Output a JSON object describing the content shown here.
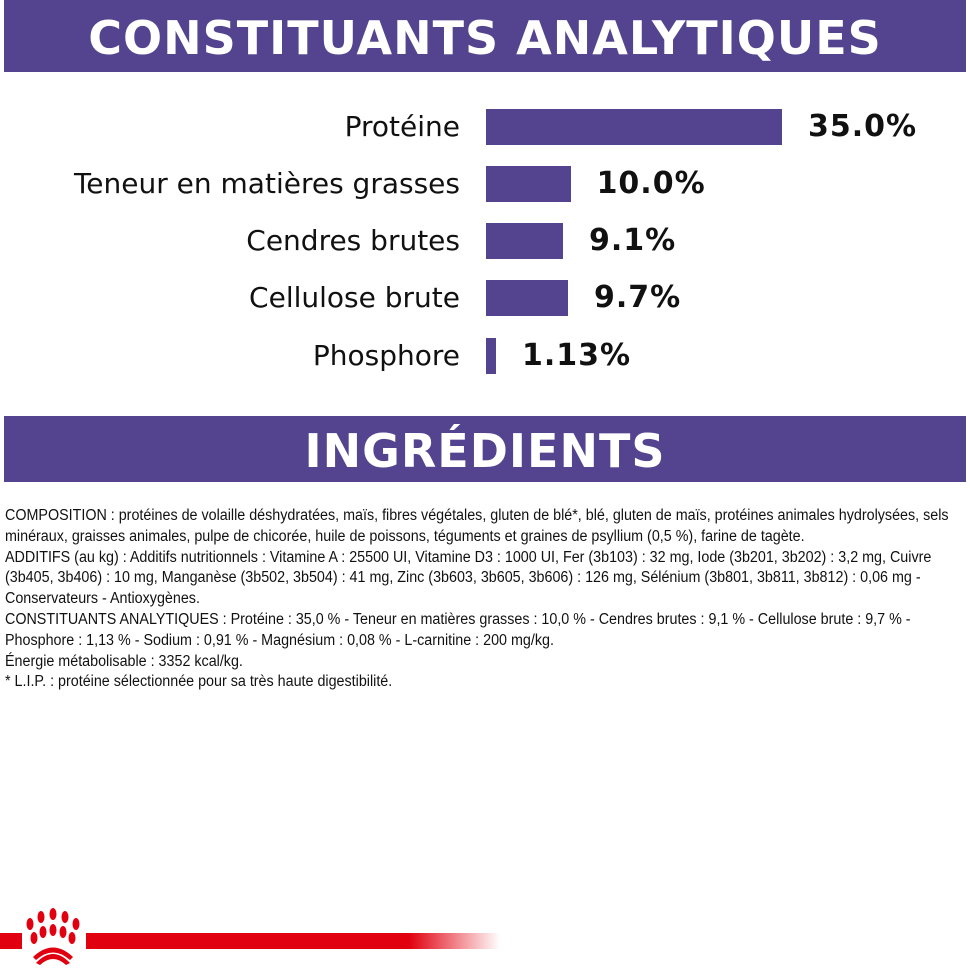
{
  "header_title": "CONSTITUANTS ANALYTIQUES",
  "chart_data": {
    "type": "bar",
    "orientation": "horizontal",
    "categories": [
      "Protéine",
      "Teneur en matières grasses",
      "Cendres brutes",
      "Cellulose brute",
      "Phosphore"
    ],
    "values": [
      35.0,
      10.0,
      9.1,
      9.7,
      1.13
    ],
    "value_labels": [
      "35.0%",
      "10.0%",
      "9.1%",
      "9.7%",
      "1.13%"
    ],
    "unit": "%",
    "bar_color": "#54448f",
    "grid": false
  },
  "ingredients_title": "INGRÉDIENTS",
  "ingredients_text": [
    "COMPOSITION : protéines de volaille déshydratées, maïs, fibres végétales, gluten de blé*, blé, gluten de maïs, protéines animales hydrolysées, sels minéraux, graisses animales, pulpe de chicorée, huile de poissons, téguments et graines de psyllium (0,5 %), farine de tagète.",
    "ADDITIFS (au kg) : Additifs nutritionnels : Vitamine A : 25500 UI, Vitamine D3 : 1000 UI, Fer (3b103) : 32 mg, Iode (3b201, 3b202) : 3,2 mg, Cuivre (3b405, 3b406) : 10 mg, Manganèse (3b502, 3b504) : 41 mg, Zinc (3b603, 3b605, 3b606) : 126 mg, Sélénium (3b801, 3b811, 3b812) : 0,06 mg - Conservateurs - Antioxygènes.",
    "CONSTITUANTS ANALYTIQUES : Protéine : 35,0 % - Teneur en matières grasses : 10,0 % - Cendres brutes : 9,1 % - Cellulose brute : 9,7 % - Phosphore : 1,13 % - Sodium : 0,91 % - Magnésium : 0,08 % - L-carnitine : 200 mg/kg.",
    "Énergie métabolisable : 3352 kcal/kg.",
    "* L.I.P. : protéine sélectionnée pour sa très haute digestibilité."
  ],
  "colors": {
    "brand_purple": "#54448f",
    "brand_red": "#e1000f"
  },
  "logo": "royal-canin-crown"
}
